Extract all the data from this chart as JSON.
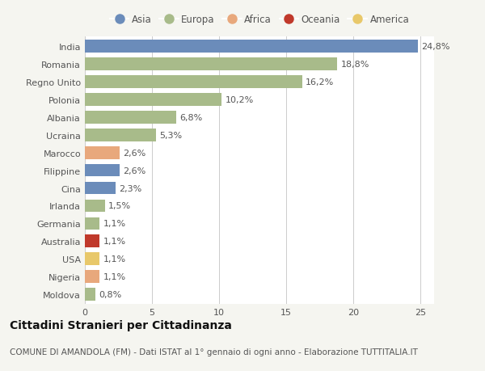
{
  "categories": [
    "India",
    "Romania",
    "Regno Unito",
    "Polonia",
    "Albania",
    "Ucraina",
    "Marocco",
    "Filippine",
    "Cina",
    "Irlanda",
    "Germania",
    "Australia",
    "USA",
    "Nigeria",
    "Moldova"
  ],
  "values": [
    24.8,
    18.8,
    16.2,
    10.2,
    6.8,
    5.3,
    2.6,
    2.6,
    2.3,
    1.5,
    1.1,
    1.1,
    1.1,
    1.1,
    0.8
  ],
  "labels": [
    "24,8%",
    "18,8%",
    "16,2%",
    "10,2%",
    "6,8%",
    "5,3%",
    "2,6%",
    "2,6%",
    "2,3%",
    "1,5%",
    "1,1%",
    "1,1%",
    "1,1%",
    "1,1%",
    "0,8%"
  ],
  "colors": [
    "#6b8cba",
    "#a8bb8a",
    "#a8bb8a",
    "#a8bb8a",
    "#a8bb8a",
    "#a8bb8a",
    "#e8a87c",
    "#6b8cba",
    "#6b8cba",
    "#a8bb8a",
    "#a8bb8a",
    "#c0392b",
    "#e8c86a",
    "#e8a87c",
    "#a8bb8a"
  ],
  "legend_labels": [
    "Asia",
    "Europa",
    "Africa",
    "Oceania",
    "America"
  ],
  "legend_colors": [
    "#6b8cba",
    "#a8bb8a",
    "#e8a87c",
    "#c0392b",
    "#e8c86a"
  ],
  "title": "Cittadini Stranieri per Cittadinanza",
  "subtitle": "COMUNE DI AMANDOLA (FM) - Dati ISTAT al 1° gennaio di ogni anno - Elaborazione TUTTITALIA.IT",
  "xlim": [
    0,
    26
  ],
  "xticks": [
    0,
    5,
    10,
    15,
    20,
    25
  ],
  "background_color": "#f5f5f0",
  "bar_background": "#ffffff",
  "grid_color": "#cccccc",
  "text_color": "#555555",
  "title_fontsize": 10,
  "subtitle_fontsize": 7.5,
  "tick_fontsize": 8,
  "label_fontsize": 8
}
